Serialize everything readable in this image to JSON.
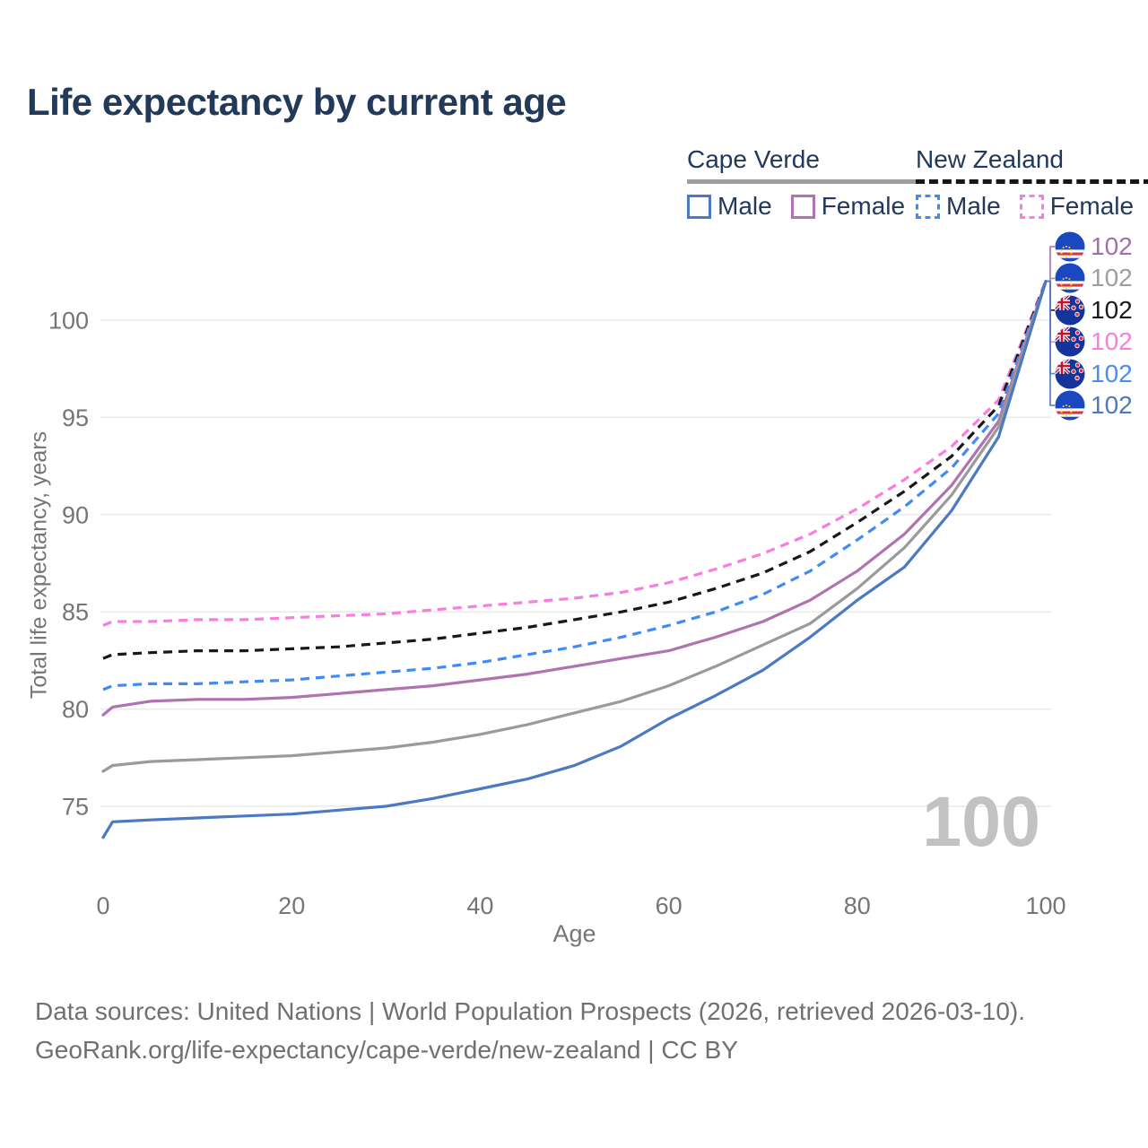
{
  "title": "Life expectancy by current age",
  "watermark": "100",
  "legend": {
    "groups": [
      {
        "country": "Cape Verde",
        "line_style": "solid",
        "underline_color": "#9e9e9e",
        "items": [
          {
            "label": "Male",
            "color": "#4b79c2"
          },
          {
            "label": "Female",
            "color": "#b072b0"
          }
        ]
      },
      {
        "country": "New Zealand",
        "line_style": "dashed",
        "underline_color": "#161616",
        "items": [
          {
            "label": "Male",
            "color": "#3f8bf4"
          },
          {
            "label": "Female",
            "color": "#f97ce1"
          }
        ]
      }
    ]
  },
  "footer": {
    "line1": "Data sources: United Nations | World Population Prospects (2026, retrieved 2026-03-10).",
    "line2": "GeoRank.org/life-expectancy/cape-verde/new-zealand | CC BY"
  },
  "chart_data": {
    "type": "line",
    "title": "Life expectancy by current age",
    "xlabel": "Age",
    "ylabel": "Total life expectancy, years",
    "xlim": [
      0,
      100
    ],
    "ylim": [
      72.5,
      103.5
    ],
    "x_ticks": [
      0,
      20,
      40,
      60,
      80,
      100
    ],
    "y_ticks": [
      75,
      80,
      85,
      90,
      95,
      100
    ],
    "grid": "horizontal",
    "legend_position": "top-right",
    "series": [
      {
        "id": "new-zealand-female",
        "name": "New Zealand Female",
        "country": "New Zealand",
        "sex": "Female",
        "color": "#f97ce1",
        "dashed": true,
        "points": [
          [
            0,
            84.3
          ],
          [
            1,
            84.5
          ],
          [
            5,
            84.5
          ],
          [
            10,
            84.6
          ],
          [
            15,
            84.6
          ],
          [
            20,
            84.7
          ],
          [
            25,
            84.8
          ],
          [
            30,
            84.9
          ],
          [
            35,
            85.1
          ],
          [
            40,
            85.3
          ],
          [
            45,
            85.5
          ],
          [
            50,
            85.7
          ],
          [
            55,
            86.0
          ],
          [
            60,
            86.5
          ],
          [
            65,
            87.2
          ],
          [
            70,
            88.0
          ],
          [
            75,
            89.0
          ],
          [
            80,
            90.3
          ],
          [
            85,
            91.8
          ],
          [
            90,
            93.5
          ],
          [
            95,
            95.9
          ],
          [
            100,
            102
          ]
        ]
      },
      {
        "id": "new-zealand-both",
        "name": "New Zealand (both sexes)",
        "country": "New Zealand",
        "sex": "All",
        "color": "#181818",
        "dashed": true,
        "points": [
          [
            0,
            82.6
          ],
          [
            1,
            82.8
          ],
          [
            5,
            82.9
          ],
          [
            10,
            83.0
          ],
          [
            15,
            83.0
          ],
          [
            20,
            83.1
          ],
          [
            25,
            83.2
          ],
          [
            30,
            83.4
          ],
          [
            35,
            83.6
          ],
          [
            40,
            83.9
          ],
          [
            45,
            84.2
          ],
          [
            50,
            84.6
          ],
          [
            55,
            85.0
          ],
          [
            60,
            85.5
          ],
          [
            65,
            86.2
          ],
          [
            70,
            87.0
          ],
          [
            75,
            88.1
          ],
          [
            80,
            89.6
          ],
          [
            85,
            91.2
          ],
          [
            90,
            93.0
          ],
          [
            95,
            95.6
          ],
          [
            100,
            102
          ]
        ]
      },
      {
        "id": "new-zealand-male",
        "name": "New Zealand Male",
        "country": "New Zealand",
        "sex": "Male",
        "color": "#3f8bf4",
        "dashed": true,
        "points": [
          [
            0,
            81.0
          ],
          [
            1,
            81.2
          ],
          [
            5,
            81.3
          ],
          [
            10,
            81.3
          ],
          [
            15,
            81.4
          ],
          [
            20,
            81.5
          ],
          [
            25,
            81.7
          ],
          [
            30,
            81.9
          ],
          [
            35,
            82.1
          ],
          [
            40,
            82.4
          ],
          [
            45,
            82.8
          ],
          [
            50,
            83.2
          ],
          [
            55,
            83.7
          ],
          [
            60,
            84.3
          ],
          [
            65,
            85.0
          ],
          [
            70,
            85.9
          ],
          [
            75,
            87.1
          ],
          [
            80,
            88.7
          ],
          [
            85,
            90.4
          ],
          [
            90,
            92.4
          ],
          [
            95,
            95.2
          ],
          [
            100,
            102
          ]
        ]
      },
      {
        "id": "cape-verde-female",
        "name": "Cape Verde Female",
        "country": "Cape Verde",
        "sex": "Female",
        "color": "#b072b0",
        "dashed": false,
        "points": [
          [
            0,
            79.7
          ],
          [
            1,
            80.1
          ],
          [
            5,
            80.4
          ],
          [
            10,
            80.5
          ],
          [
            15,
            80.5
          ],
          [
            20,
            80.6
          ],
          [
            25,
            80.8
          ],
          [
            30,
            81.0
          ],
          [
            35,
            81.2
          ],
          [
            40,
            81.5
          ],
          [
            45,
            81.8
          ],
          [
            50,
            82.2
          ],
          [
            55,
            82.6
          ],
          [
            60,
            83.0
          ],
          [
            65,
            83.7
          ],
          [
            70,
            84.5
          ],
          [
            75,
            85.6
          ],
          [
            80,
            87.1
          ],
          [
            85,
            89.0
          ],
          [
            90,
            91.5
          ],
          [
            95,
            94.8
          ],
          [
            100,
            102
          ]
        ]
      },
      {
        "id": "cape-verde-both",
        "name": "Cape Verde (both sexes)",
        "country": "Cape Verde",
        "sex": "All",
        "color": "#9a9a9a",
        "dashed": false,
        "points": [
          [
            0,
            76.8
          ],
          [
            1,
            77.1
          ],
          [
            5,
            77.3
          ],
          [
            10,
            77.4
          ],
          [
            15,
            77.5
          ],
          [
            20,
            77.6
          ],
          [
            25,
            77.8
          ],
          [
            30,
            78.0
          ],
          [
            35,
            78.3
          ],
          [
            40,
            78.7
          ],
          [
            45,
            79.2
          ],
          [
            50,
            79.8
          ],
          [
            55,
            80.4
          ],
          [
            60,
            81.2
          ],
          [
            65,
            82.2
          ],
          [
            70,
            83.3
          ],
          [
            75,
            84.4
          ],
          [
            80,
            86.2
          ],
          [
            85,
            88.3
          ],
          [
            90,
            91.0
          ],
          [
            95,
            94.5
          ],
          [
            100,
            102
          ]
        ]
      },
      {
        "id": "cape-verde-male",
        "name": "Cape Verde Male",
        "country": "Cape Verde",
        "sex": "Male",
        "color": "#4b79c2",
        "dashed": false,
        "points": [
          [
            0,
            73.4
          ],
          [
            1,
            74.2
          ],
          [
            5,
            74.3
          ],
          [
            10,
            74.4
          ],
          [
            15,
            74.5
          ],
          [
            20,
            74.6
          ],
          [
            25,
            74.8
          ],
          [
            30,
            75.0
          ],
          [
            35,
            75.4
          ],
          [
            40,
            75.9
          ],
          [
            45,
            76.4
          ],
          [
            50,
            77.1
          ],
          [
            55,
            78.1
          ],
          [
            60,
            79.5
          ],
          [
            65,
            80.7
          ],
          [
            70,
            82.0
          ],
          [
            75,
            83.7
          ],
          [
            80,
            85.6
          ],
          [
            85,
            87.3
          ],
          [
            90,
            90.2
          ],
          [
            95,
            94.0
          ],
          [
            100,
            102
          ]
        ]
      }
    ],
    "endpoints": [
      {
        "flag": "cape-verde",
        "series": "cape-verde-female",
        "label": "102",
        "color": "#a96bb0"
      },
      {
        "flag": "cape-verde",
        "series": "cape-verde-both",
        "label": "102",
        "color": "#9e9e9e"
      },
      {
        "flag": "new-zealand",
        "series": "new-zealand-both",
        "label": "102",
        "color": "#1a1a1a"
      },
      {
        "flag": "new-zealand",
        "series": "new-zealand-female",
        "label": "102",
        "color": "#f97ce1"
      },
      {
        "flag": "new-zealand",
        "series": "new-zealand-male",
        "label": "102",
        "color": "#4a8df2"
      },
      {
        "flag": "cape-verde",
        "series": "cape-verde-male",
        "label": "102",
        "color": "#4b79c2"
      }
    ]
  }
}
